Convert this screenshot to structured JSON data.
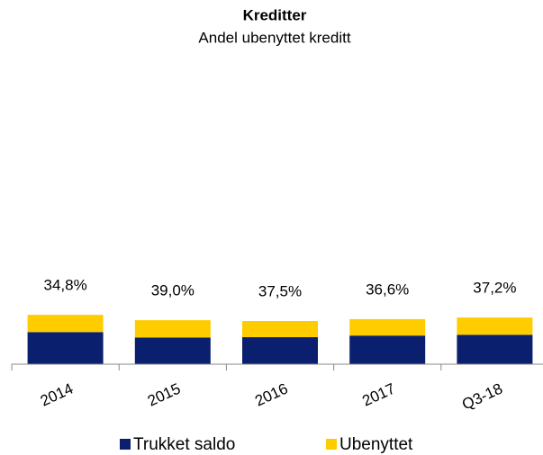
{
  "chart_data": {
    "type": "stacked_bar",
    "title": "Kreditter",
    "subtitle": "Andel ubenyttet kreditt",
    "categories": [
      "2014",
      "2015",
      "2016",
      "2017",
      "Q3-18"
    ],
    "series": [
      {
        "name": "Trukket saldo",
        "color": "#0a1f6e",
        "values": [
          11.9,
          9.9,
          10.0,
          10.6,
          10.9
        ]
      },
      {
        "name": "Ubenyttet",
        "color": "#ffcc00",
        "values": [
          6.4,
          6.4,
          6.0,
          6.1,
          6.4
        ]
      }
    ],
    "share_labels": [
      "34,8%",
      "39,0%",
      "37,5%",
      "36,6%",
      "37,2%"
    ],
    "ylim": [
      0,
      100
    ]
  }
}
